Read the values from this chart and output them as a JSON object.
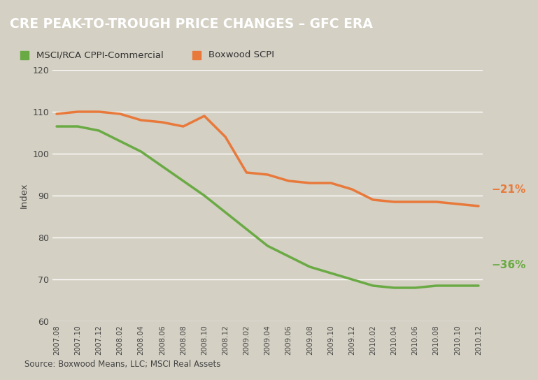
{
  "title": "CRE PEAK-TO-TROUGH PRICE CHANGES – GFC ERA",
  "title_bg_color": "#696661",
  "title_text_color": "#ffffff",
  "bg_color": "#d4d0c4",
  "plot_bg_color": "#d4d0c4",
  "ylabel": "Index",
  "ylim": [
    60,
    120
  ],
  "yticks": [
    60,
    70,
    80,
    90,
    100,
    110,
    120
  ],
  "source_text": "Source: Boxwood Means, LLC; MSCI Real Assets",
  "legend_labels": [
    "MSCI/RCA CPPI-Commercial",
    "Boxwood SCPI"
  ],
  "legend_colors": [
    "#6aaa44",
    "#e8793a"
  ],
  "annotation_orange": "−21%",
  "annotation_green": "−36%",
  "annotation_orange_color": "#e8793a",
  "annotation_green_color": "#6aaa44",
  "xtick_labels": [
    "2007.08",
    "2007.10",
    "2007.12",
    "2008.02",
    "2008.04",
    "2008.06",
    "2008.08",
    "2008.10",
    "2008.12",
    "2009.02",
    "2009.04",
    "2009.06",
    "2009.08",
    "2009.10",
    "2009.12",
    "2010.02",
    "2010.04",
    "2010.06",
    "2010.08",
    "2010.10",
    "2010.12"
  ],
  "msci_values": [
    106.5,
    106.5,
    105.5,
    103.0,
    100.5,
    97.0,
    93.5,
    90.0,
    86.0,
    82.0,
    78.0,
    75.5,
    73.0,
    71.5,
    70.0,
    68.5,
    68.0,
    68.0,
    68.5,
    68.5,
    68.5
  ],
  "boxwood_values": [
    109.5,
    110.0,
    110.0,
    109.5,
    108.0,
    107.5,
    106.5,
    109.0,
    104.0,
    95.5,
    95.0,
    93.5,
    93.0,
    93.0,
    91.5,
    89.0,
    88.5,
    88.5,
    88.5,
    88.0,
    87.5
  ],
  "line_width": 2.5,
  "grid_color": "#ffffff",
  "grid_linewidth": 1.0
}
